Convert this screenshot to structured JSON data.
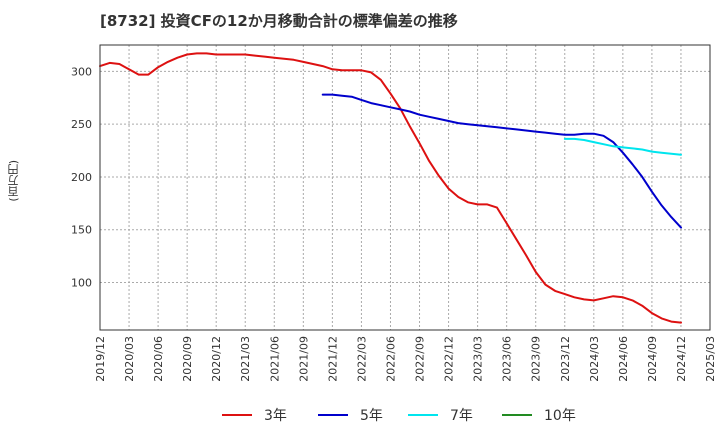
{
  "chart_data": {
    "type": "line",
    "title": "[8732]  投資CFの12か月移動合計の標準偏差の推移",
    "ylabel": "(百万円)",
    "xlabel": "",
    "ylim": [
      55,
      325
    ],
    "yticks": [
      100,
      150,
      200,
      250,
      300
    ],
    "xticks": [
      "2019/12",
      "2020/03",
      "2020/06",
      "2020/09",
      "2020/12",
      "2021/03",
      "2021/06",
      "2021/09",
      "2021/12",
      "2022/03",
      "2022/06",
      "2022/09",
      "2022/12",
      "2023/03",
      "2023/06",
      "2023/09",
      "2023/12",
      "2024/03",
      "2024/06",
      "2024/09",
      "2024/12",
      "2025/03"
    ],
    "grid": true,
    "legend_position": "bottom",
    "series": [
      {
        "name": "3年",
        "color": "#dd1111",
        "points": [
          [
            "2019/12",
            305
          ],
          [
            "2020/01",
            308
          ],
          [
            "2020/02",
            307
          ],
          [
            "2020/03",
            302
          ],
          [
            "2020/04",
            297
          ],
          [
            "2020/05",
            297
          ],
          [
            "2020/06",
            304
          ],
          [
            "2020/07",
            309
          ],
          [
            "2020/08",
            313
          ],
          [
            "2020/09",
            316
          ],
          [
            "2020/10",
            317
          ],
          [
            "2020/11",
            317
          ],
          [
            "2020/12",
            316
          ],
          [
            "2021/01",
            316
          ],
          [
            "2021/02",
            316
          ],
          [
            "2021/03",
            316
          ],
          [
            "2021/04",
            315
          ],
          [
            "2021/05",
            314
          ],
          [
            "2021/06",
            313
          ],
          [
            "2021/07",
            312
          ],
          [
            "2021/08",
            311
          ],
          [
            "2021/09",
            309
          ],
          [
            "2021/10",
            307
          ],
          [
            "2021/11",
            305
          ],
          [
            "2021/12",
            302
          ],
          [
            "2022/01",
            301
          ],
          [
            "2022/02",
            301
          ],
          [
            "2022/03",
            301
          ],
          [
            "2022/04",
            299
          ],
          [
            "2022/05",
            292
          ],
          [
            "2022/06",
            279
          ],
          [
            "2022/07",
            265
          ],
          [
            "2022/08",
            248
          ],
          [
            "2022/09",
            232
          ],
          [
            "2022/10",
            215
          ],
          [
            "2022/11",
            201
          ],
          [
            "2022/12",
            189
          ],
          [
            "2023/01",
            181
          ],
          [
            "2023/02",
            176
          ],
          [
            "2023/03",
            174
          ],
          [
            "2023/04",
            174
          ],
          [
            "2023/05",
            171
          ],
          [
            "2023/06",
            156
          ],
          [
            "2023/07",
            141
          ],
          [
            "2023/08",
            126
          ],
          [
            "2023/09",
            110
          ],
          [
            "2023/10",
            98
          ],
          [
            "2023/11",
            92
          ],
          [
            "2023/12",
            89
          ],
          [
            "2024/01",
            86
          ],
          [
            "2024/02",
            84
          ],
          [
            "2024/03",
            83
          ],
          [
            "2024/04",
            85
          ],
          [
            "2024/05",
            87
          ],
          [
            "2024/06",
            86
          ],
          [
            "2024/07",
            83
          ],
          [
            "2024/08",
            78
          ],
          [
            "2024/09",
            71
          ],
          [
            "2024/10",
            66
          ],
          [
            "2024/11",
            63
          ],
          [
            "2024/12",
            62
          ]
        ]
      },
      {
        "name": "5年",
        "color": "#0000cc",
        "points": [
          [
            "2021/11",
            278
          ],
          [
            "2021/12",
            278
          ],
          [
            "2022/01",
            277
          ],
          [
            "2022/02",
            276
          ],
          [
            "2022/03",
            273
          ],
          [
            "2022/04",
            270
          ],
          [
            "2022/05",
            268
          ],
          [
            "2022/06",
            266
          ],
          [
            "2022/07",
            264
          ],
          [
            "2022/08",
            262
          ],
          [
            "2022/09",
            259
          ],
          [
            "2022/10",
            257
          ],
          [
            "2022/11",
            255
          ],
          [
            "2022/12",
            253
          ],
          [
            "2023/01",
            251
          ],
          [
            "2023/02",
            250
          ],
          [
            "2023/03",
            249
          ],
          [
            "2023/04",
            248
          ],
          [
            "2023/05",
            247
          ],
          [
            "2023/06",
            246
          ],
          [
            "2023/07",
            245
          ],
          [
            "2023/08",
            244
          ],
          [
            "2023/09",
            243
          ],
          [
            "2023/10",
            242
          ],
          [
            "2023/11",
            241
          ],
          [
            "2023/12",
            240
          ],
          [
            "2024/01",
            240
          ],
          [
            "2024/02",
            241
          ],
          [
            "2024/03",
            241
          ],
          [
            "2024/04",
            239
          ],
          [
            "2024/05",
            233
          ],
          [
            "2024/06",
            223
          ],
          [
            "2024/07",
            212
          ],
          [
            "2024/08",
            200
          ],
          [
            "2024/09",
            186
          ],
          [
            "2024/10",
            173
          ],
          [
            "2024/11",
            162
          ],
          [
            "2024/12",
            152
          ]
        ]
      },
      {
        "name": "7年",
        "color": "#00e5ee",
        "points": [
          [
            "2023/12",
            236
          ],
          [
            "2024/01",
            236
          ],
          [
            "2024/02",
            235
          ],
          [
            "2024/03",
            233
          ],
          [
            "2024/04",
            231
          ],
          [
            "2024/05",
            229
          ],
          [
            "2024/06",
            228
          ],
          [
            "2024/07",
            227
          ],
          [
            "2024/08",
            226
          ],
          [
            "2024/09",
            224
          ],
          [
            "2024/10",
            223
          ],
          [
            "2024/11",
            222
          ],
          [
            "2024/12",
            221
          ]
        ]
      },
      {
        "name": "10年",
        "color": "#228b22",
        "points": []
      }
    ]
  }
}
